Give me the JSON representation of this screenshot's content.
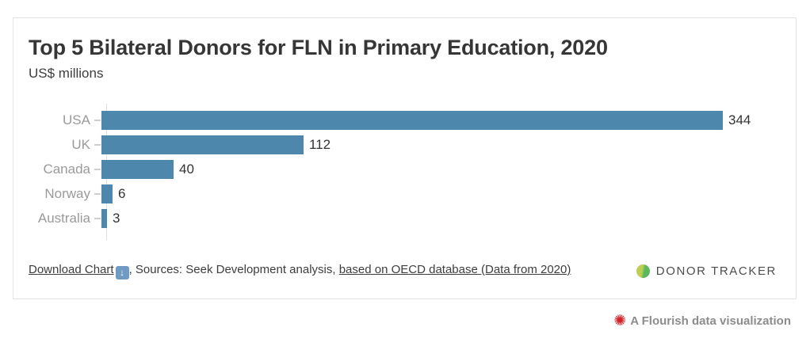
{
  "card": {
    "title": "Top 5 Bilateral Donors for FLN in Primary Education, 2020",
    "subtitle": "US$ millions"
  },
  "chart_data": {
    "type": "bar",
    "orientation": "horizontal",
    "title": "Top 5 Bilateral Donors for FLN in Primary Education, 2020",
    "xlabel": "US$ millions",
    "categories": [
      "USA",
      "UK",
      "Canada",
      "Norway",
      "Australia"
    ],
    "values": [
      344,
      112,
      40,
      6,
      3
    ],
    "value_labels": [
      "344",
      "112",
      "40",
      "6",
      "3"
    ],
    "xlim": [
      0,
      390
    ],
    "grid": false,
    "legend": false,
    "bar_color": "#4e87ac",
    "category_label_color": "#9a9a9a",
    "value_label_color": "#333333",
    "axis_line_color": "#e0e0e0"
  },
  "footer": {
    "download_label": "Download Chart",
    "download_icon_glyph": "↓",
    "separator_text": ", Sources: Seek Development analysis, ",
    "source_link": "based on OECD database (Data from 2020)"
  },
  "branding": {
    "logo_text": "DONOR TRACKER",
    "logo_colors": [
      "#bccf51",
      "#5cb75e"
    ]
  },
  "attribution": {
    "icon_glyph": "✺",
    "icon_color": "#d22128",
    "text": "A Flourish data visualization"
  }
}
